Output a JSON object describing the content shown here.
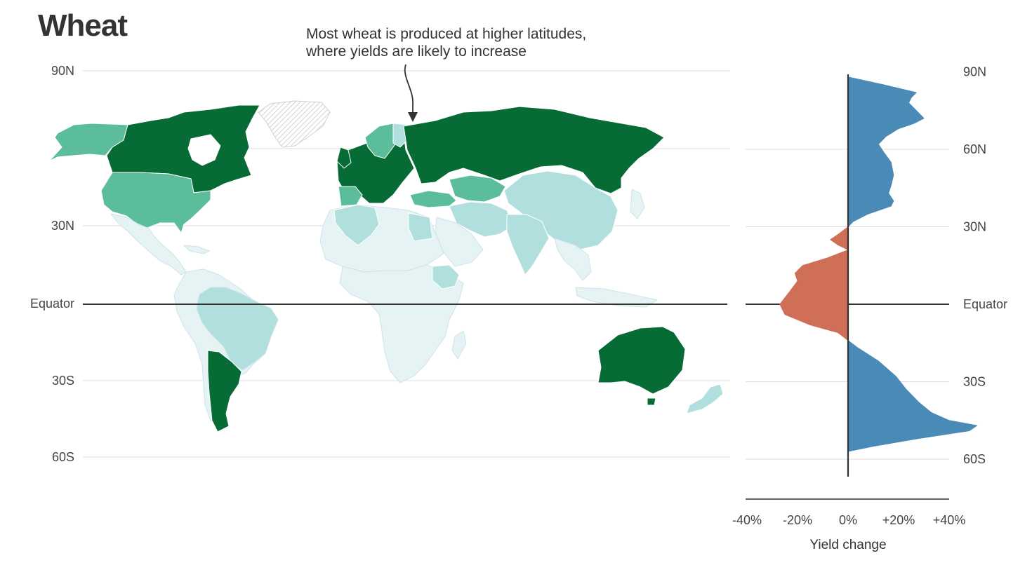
{
  "title": "Wheat",
  "annotation": "Most wheat is produced at higher latitudes,\nwhere yields are likely to increase",
  "map": {
    "left_labels": [
      "90N",
      "30N",
      "Equator",
      "30S",
      "60S"
    ],
    "colors": {
      "dark_green": "#066b35",
      "medium_green": "#5bbd9a",
      "light_teal": "#b0dfdd",
      "very_light": "#e6f3f5",
      "no_data_hatch": "#d9d9d9"
    }
  },
  "chart_data": {
    "type": "area",
    "orientation": "horizontal",
    "xlabel": "Yield change",
    "x_tick_labels": [
      "-40%",
      "-20%",
      "0%",
      "+20%",
      "+40%"
    ],
    "x_ticks": [
      -40,
      -20,
      0,
      20,
      40
    ],
    "xlim": [
      -45,
      45
    ],
    "ylim": [
      -72,
      90
    ],
    "lat_labels": [
      {
        "lat": 90,
        "label": "90N"
      },
      {
        "lat": 60,
        "label": "60N"
      },
      {
        "lat": 30,
        "label": "30N"
      },
      {
        "lat": 0,
        "label": "Equator"
      },
      {
        "lat": -30,
        "label": "30S"
      },
      {
        "lat": -60,
        "label": "60S"
      }
    ],
    "colors": {
      "positive": "#4a8ab7",
      "negative": "#cf6f58"
    },
    "profile": [
      {
        "lat": 88,
        "value": 0
      },
      {
        "lat": 85,
        "value": 14
      },
      {
        "lat": 82,
        "value": 27
      },
      {
        "lat": 80,
        "value": 25
      },
      {
        "lat": 78,
        "value": 24
      },
      {
        "lat": 76,
        "value": 26
      },
      {
        "lat": 74,
        "value": 28
      },
      {
        "lat": 72,
        "value": 30
      },
      {
        "lat": 70,
        "value": 26
      },
      {
        "lat": 68,
        "value": 20
      },
      {
        "lat": 65,
        "value": 15
      },
      {
        "lat": 62,
        "value": 12
      },
      {
        "lat": 59,
        "value": 14
      },
      {
        "lat": 55,
        "value": 17
      },
      {
        "lat": 50,
        "value": 18
      },
      {
        "lat": 46,
        "value": 17
      },
      {
        "lat": 43,
        "value": 16
      },
      {
        "lat": 40,
        "value": 18
      },
      {
        "lat": 38,
        "value": 17
      },
      {
        "lat": 35,
        "value": 8
      },
      {
        "lat": 32,
        "value": 2
      },
      {
        "lat": 30,
        "value": 0
      },
      {
        "lat": 27,
        "value": -4
      },
      {
        "lat": 25,
        "value": -7
      },
      {
        "lat": 23,
        "value": -4
      },
      {
        "lat": 21,
        "value": 0
      },
      {
        "lat": 18,
        "value": -8
      },
      {
        "lat": 15,
        "value": -18
      },
      {
        "lat": 12,
        "value": -21
      },
      {
        "lat": 9,
        "value": -20
      },
      {
        "lat": 5,
        "value": -23
      },
      {
        "lat": 0,
        "value": -27
      },
      {
        "lat": -4,
        "value": -25
      },
      {
        "lat": -8,
        "value": -15
      },
      {
        "lat": -11,
        "value": -4
      },
      {
        "lat": -14,
        "value": 0
      },
      {
        "lat": -17,
        "value": 4
      },
      {
        "lat": -22,
        "value": 12
      },
      {
        "lat": -28,
        "value": 19
      },
      {
        "lat": -33,
        "value": 23
      },
      {
        "lat": -38,
        "value": 28
      },
      {
        "lat": -42,
        "value": 33
      },
      {
        "lat": -45,
        "value": 40
      },
      {
        "lat": -47,
        "value": 51
      },
      {
        "lat": -49,
        "value": 48
      },
      {
        "lat": -52,
        "value": 28
      },
      {
        "lat": -55,
        "value": 10
      },
      {
        "lat": -57,
        "value": 0
      }
    ]
  }
}
